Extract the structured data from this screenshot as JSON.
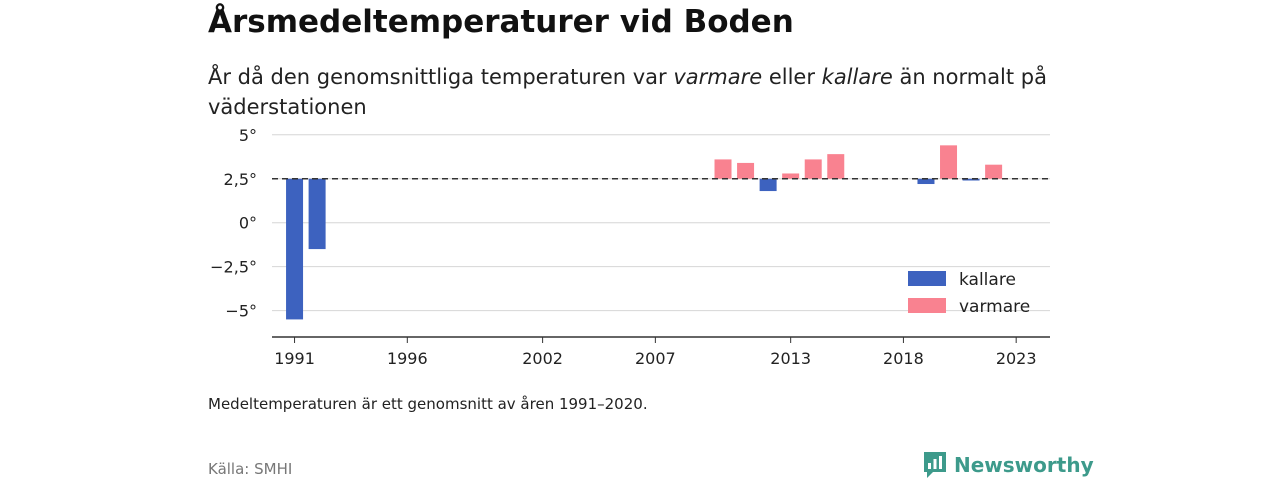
{
  "header": {
    "title": "Årsmedeltemperaturer vid Boden",
    "subtitle_pre": "År då den genomsnittliga temperaturen var ",
    "subtitle_em1": "varmare",
    "subtitle_mid": " eller ",
    "subtitle_em2": "kallare",
    "subtitle_post": " än normalt på väderstationen"
  },
  "footer": {
    "note": "Medeltemperaturen är ett genomsnitt av åren 1991–2020.",
    "source": "Källa: SMHI",
    "brand": "Newsworthy"
  },
  "colors": {
    "kallare": "#3d62bf",
    "varmare": "#f98290",
    "brand": "#3d9a8b"
  },
  "chart_data": {
    "type": "bar",
    "baseline": 2.5,
    "ylim": [
      -6.5,
      5.5
    ],
    "yticks": [
      5,
      2.5,
      0,
      -2.5,
      -5
    ],
    "ytick_labels": [
      "5°",
      "2,5°",
      "0°",
      "−2,5°",
      "−5°"
    ],
    "xticks": [
      1991,
      1996,
      2002,
      2007,
      2013,
      2018,
      2023
    ],
    "xlim": [
      1990,
      2024.5
    ],
    "legend": [
      {
        "label": "kallare",
        "color": "#3d62bf"
      },
      {
        "label": "varmare",
        "color": "#f98290"
      }
    ],
    "legend_position": "bottom-right",
    "grid": true,
    "bars": [
      {
        "year": 1991,
        "value": -5.5
      },
      {
        "year": 1992,
        "value": -1.5
      },
      {
        "year": 2010,
        "value": 3.6
      },
      {
        "year": 2011,
        "value": 3.4
      },
      {
        "year": 2012,
        "value": 1.8
      },
      {
        "year": 2013,
        "value": 2.8
      },
      {
        "year": 2014,
        "value": 3.6
      },
      {
        "year": 2015,
        "value": 3.9
      },
      {
        "year": 2019,
        "value": 2.2
      },
      {
        "year": 2020,
        "value": 4.4
      },
      {
        "year": 2021,
        "value": 2.4
      },
      {
        "year": 2022,
        "value": 3.3
      }
    ]
  }
}
